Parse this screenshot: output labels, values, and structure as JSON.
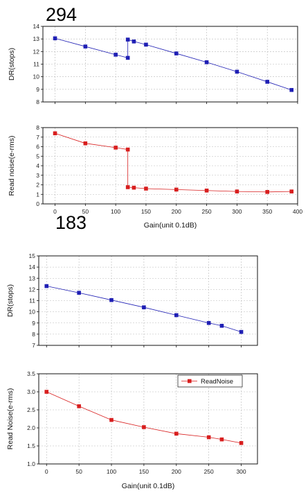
{
  "chart_data": [
    {
      "title": "294",
      "type": "line",
      "xlabel": "Gain(unit 0.1dB)",
      "xlim": [
        -20,
        400
      ],
      "x_ticks": [
        0,
        50,
        100,
        150,
        200,
        250,
        300,
        350,
        400
      ],
      "grid": true,
      "panels": [
        {
          "ylabel": "DR(stops)",
          "ylim": [
            8,
            14
          ],
          "y_ticks": [
            8,
            9,
            10,
            11,
            12,
            13,
            14
          ],
          "series": [
            {
              "color": "#1f1fb4",
              "marker": "square",
              "x": [
                0,
                50,
                100,
                120,
                120,
                130,
                150,
                200,
                250,
                300,
                350,
                390
              ],
              "y": [
                13.05,
                12.4,
                11.75,
                11.5,
                12.95,
                12.8,
                12.55,
                11.85,
                11.15,
                10.4,
                9.6,
                8.95
              ]
            }
          ]
        },
        {
          "ylabel": "Read noise(e-rms)",
          "ylim": [
            0,
            8
          ],
          "y_ticks": [
            0,
            1,
            2,
            3,
            4,
            5,
            6,
            7,
            8
          ],
          "series": [
            {
              "color": "#d81e1e",
              "marker": "square",
              "x": [
                0,
                50,
                100,
                120,
                120,
                130,
                150,
                200,
                250,
                300,
                350,
                390
              ],
              "y": [
                7.4,
                6.35,
                5.9,
                5.7,
                1.75,
                1.7,
                1.6,
                1.5,
                1.4,
                1.3,
                1.25,
                1.3
              ]
            }
          ]
        }
      ]
    },
    {
      "title": "183",
      "type": "line",
      "xlabel": "Gain(unit 0.1dB)",
      "xlim": [
        -12,
        325
      ],
      "x_ticks": [
        0,
        50,
        100,
        150,
        200,
        250,
        300
      ],
      "grid": true,
      "panels": [
        {
          "ylabel": "DR(stops)",
          "ylim": [
            7,
            15
          ],
          "y_ticks": [
            7,
            8,
            9,
            10,
            11,
            12,
            13,
            14,
            15
          ],
          "series": [
            {
              "color": "#1f1fb4",
              "marker": "square",
              "x": [
                0,
                50,
                100,
                150,
                200,
                250,
                270,
                300
              ],
              "y": [
                12.3,
                11.7,
                11.05,
                10.4,
                9.7,
                9.0,
                8.75,
                8.2
              ]
            }
          ]
        },
        {
          "ylabel": "Read Noise(e-rms)",
          "ylim": [
            1.0,
            3.5
          ],
          "y_ticks": [
            "1.0",
            "1.5",
            "2.0",
            "2.5",
            "3.0",
            "3.5"
          ],
          "legend": "top-right",
          "series": [
            {
              "name": "ReadNoise",
              "color": "#d81e1e",
              "marker": "square",
              "x": [
                0,
                50,
                100,
                150,
                200,
                250,
                270,
                300
              ],
              "y": [
                3.0,
                2.6,
                2.22,
                2.02,
                1.84,
                1.74,
                1.68,
                1.58
              ]
            }
          ]
        }
      ]
    }
  ]
}
